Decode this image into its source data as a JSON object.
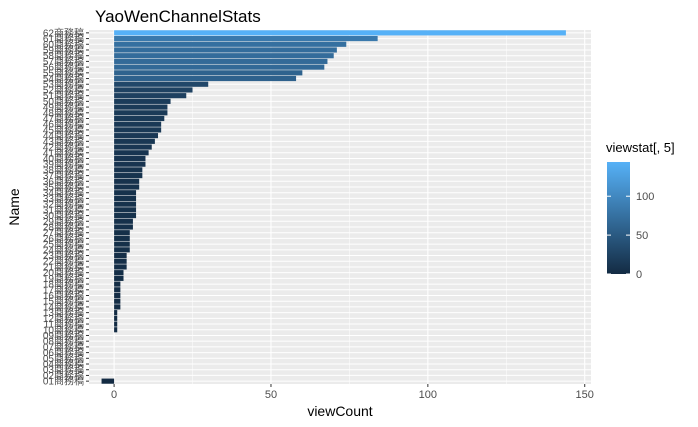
{
  "chart_data": {
    "type": "bar",
    "orientation": "horizontal",
    "title": "YaoWenChannelStats",
    "xlabel": "viewCount",
    "ylabel": "Name",
    "xlim": [
      -8,
      152
    ],
    "xticks": [
      0,
      50,
      100,
      150
    ],
    "grid": true,
    "legend": {
      "title": "viewstat[, 5]",
      "placement": "right",
      "ticks": [
        0,
        50,
        100
      ],
      "range": [
        0,
        144
      ],
      "color_low": "#132b43",
      "color_high": "#56b1f7"
    },
    "categories": [
      "01商務稿",
      "02商務稿",
      "03商務稿",
      "04商務稿",
      "05商務稿",
      "06商務稿",
      "07商務稿",
      "08商務稿",
      "09商務稿",
      "10商務稿",
      "11商務稿",
      "12商務稿",
      "13商務稿",
      "14商務稿",
      "15商務稿",
      "16商務稿",
      "17商務稿",
      "18商務稿",
      "19商務稿",
      "20商務稿",
      "21商務稿",
      "22商務稿",
      "23商務稿",
      "24商務稿",
      "25商務稿",
      "26商務稿",
      "27商務稿",
      "28商務稿",
      "29商務稿",
      "30商務稿",
      "31商務稿",
      "32商務稿",
      "33商務稿",
      "34商務稿",
      "35商務稿",
      "36商務稿",
      "37商務稿",
      "38商務稿",
      "39商務稿",
      "40商務稿",
      "41商務稿",
      "42商務稿",
      "43商務稿",
      "44商務稿",
      "45商務稿",
      "46商務稿",
      "47商務稿",
      "48商務稿",
      "49商務稿",
      "50商務稿",
      "51商務稿",
      "52商務稿",
      "53商務稿",
      "54商務稿",
      "55商務稿",
      "56商務稿",
      "57商務稿",
      "58商務稿",
      "59商務稿",
      "60商務稿",
      "61商務稿",
      "62商務稿"
    ],
    "values": [
      -4,
      0,
      0,
      0,
      0,
      0,
      0,
      0,
      0,
      1,
      1,
      1,
      1,
      2,
      2,
      2,
      2,
      2,
      3,
      3,
      4,
      4,
      4,
      5,
      5,
      5,
      5,
      6,
      6,
      7,
      7,
      7,
      7,
      7,
      8,
      8,
      9,
      9,
      10,
      10,
      11,
      12,
      13,
      14,
      15,
      15,
      16,
      17,
      17,
      18,
      23,
      25,
      30,
      58,
      60,
      67,
      68,
      70,
      71,
      74,
      84,
      144
    ]
  }
}
